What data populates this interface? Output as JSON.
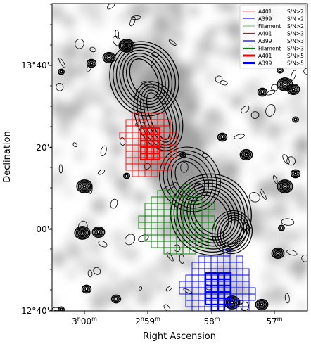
{
  "chart_data": {
    "type": "heatmap",
    "xlabel": "Right Ascension",
    "ylabel": "Declination",
    "x_ticks": [
      {
        "h": "3",
        "hs": "h",
        "m": "00",
        "ms": "m"
      },
      {
        "h": "2",
        "hs": "h",
        "m": "59",
        "ms": "m"
      },
      {
        "h": "",
        "hs": "",
        "m": "58",
        "ms": "m"
      },
      {
        "h": "",
        "hs": "",
        "m": "57",
        "ms": "m"
      }
    ],
    "y_ticks": [
      "13°40'",
      "20'",
      "00'",
      "12°40'"
    ],
    "xlim_ra_minutes_desc": [
      180.45,
      176.45
    ],
    "ylim_dec_arcmin": [
      -0.5,
      72.5
    ],
    "legend": {
      "placement": "top-right",
      "entries": [
        {
          "label": "A401",
          "snr": "S/N>2",
          "color": "#ff6f6f",
          "width": 1
        },
        {
          "label": "A399",
          "snr": "S/N>2",
          "color": "#6f6fff",
          "width": 1
        },
        {
          "label": "Filament",
          "snr": "S/N>2",
          "color": "#5fbf5f",
          "width": 1
        },
        {
          "label": "A401",
          "snr": "S/N>3",
          "color": "#ff0000",
          "width": 1.3
        },
        {
          "label": "A399",
          "snr": "S/N>3",
          "color": "#0000ff",
          "width": 1.3
        },
        {
          "label": "Filament",
          "snr": "S/N>3",
          "color": "#008000",
          "width": 1.3
        },
        {
          "label": "A401",
          "snr": "S/N>5",
          "color": "#ff0000",
          "width": 3
        },
        {
          "label": "A399",
          "snr": "S/N>5",
          "color": "#0000ff",
          "width": 3
        }
      ]
    },
    "regions": [
      {
        "name": "A401",
        "color": "#ff0000",
        "center_ra_min": 178.97,
        "center_dec_arcmin": 40.0,
        "rx_min": 0.42,
        "ry_arcmin": 8.0
      },
      {
        "name": "Filament",
        "color": "#008000",
        "center_ra_min": 178.55,
        "center_dec_arcmin": 21.5,
        "rx_min": 0.55,
        "ry_arcmin": 8.0
      },
      {
        "name": "A399",
        "color": "#0000ff",
        "center_ra_min": 177.9,
        "center_dec_arcmin": 5.0,
        "rx_min": 0.55,
        "ry_arcmin": 9.0
      }
    ],
    "grid": false
  }
}
